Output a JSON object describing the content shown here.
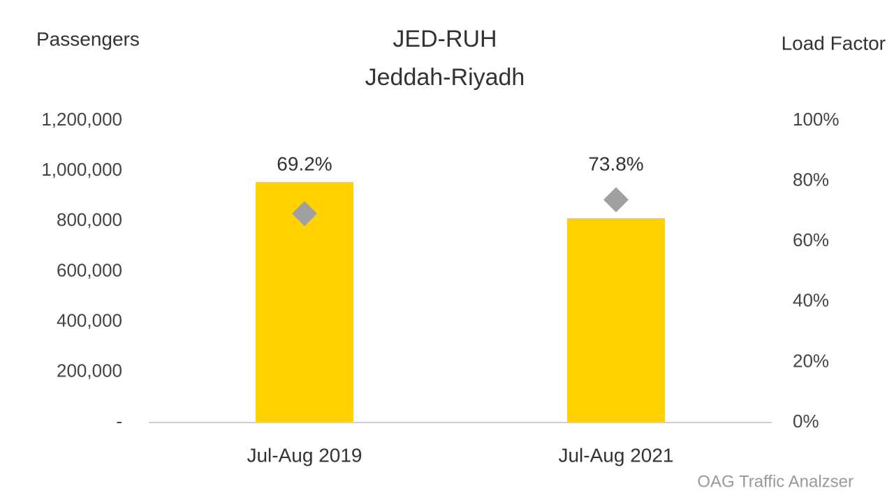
{
  "chart_data": {
    "type": "combo",
    "title": "JED-RUH",
    "subtitle": "Jeddah-Riyadh",
    "y_label": "Passengers",
    "y2_label": "Load Factor",
    "source": "OAG Traffic Analzser",
    "categories": [
      "Jul-Aug 2019",
      "Jul-Aug 2021"
    ],
    "series": [
      {
        "name": "Passengers",
        "type": "bar",
        "color": "#FFD200",
        "values": [
          956000,
          812000
        ]
      },
      {
        "name": "Load Factor",
        "type": "line",
        "axis": "y2",
        "color": "#A0A0A0",
        "values": [
          69.2,
          73.8
        ],
        "value_labels": [
          "69.2%",
          "73.8%"
        ]
      }
    ],
    "ylim": [
      0,
      1200000
    ],
    "yticks": [
      {
        "value": 0,
        "label": "-"
      },
      {
        "value": 200000,
        "label": "200,000"
      },
      {
        "value": 400000,
        "label": "400,000"
      },
      {
        "value": 600000,
        "label": "600,000"
      },
      {
        "value": 800000,
        "label": "800,000"
      },
      {
        "value": 1000000,
        "label": "1,000,000"
      },
      {
        "value": 1200000,
        "label": "1,200,000"
      }
    ],
    "y2lim": [
      0,
      100
    ],
    "y2ticks": [
      {
        "value": 0,
        "label": "0%"
      },
      {
        "value": 20,
        "label": "20%"
      },
      {
        "value": 40,
        "label": "40%"
      },
      {
        "value": 60,
        "label": "60%"
      },
      {
        "value": 80,
        "label": "80%"
      },
      {
        "value": 100,
        "label": "100%"
      }
    ]
  }
}
